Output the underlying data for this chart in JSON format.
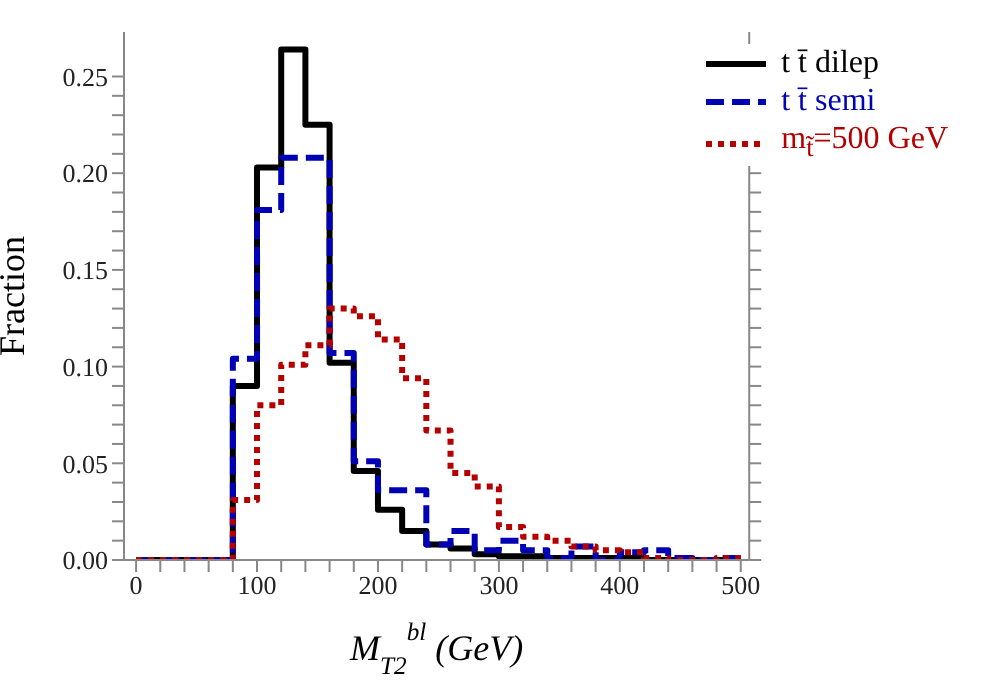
{
  "chart_data": {
    "type": "histogram",
    "xlabel": "M$_{T2}$$^{bl}$  (GeV)",
    "ylabel": "Fraction",
    "bins": [
      0,
      20,
      40,
      60,
      80,
      100,
      120,
      140,
      160,
      180,
      200,
      220,
      240,
      260,
      280,
      300,
      320,
      340,
      360,
      380,
      400,
      420,
      440,
      460,
      480,
      500
    ],
    "series": [
      {
        "name": "t t̄ dilep",
        "color": "#000000",
        "line_style": "solid",
        "values": [
          0,
          0,
          0,
          0,
          0.09,
          0.203,
          0.264,
          0.225,
          0.102,
          0.046,
          0.026,
          0.015,
          0.008,
          0.006,
          0.003,
          0.002,
          0.002,
          0.001,
          0.001,
          0.001,
          0.001,
          0,
          0,
          0,
          0
        ]
      },
      {
        "name": "t t̄ semi",
        "color": "#0000b4",
        "line_style": "dashed",
        "values": [
          0,
          0,
          0,
          0,
          0.104,
          0.181,
          0.208,
          0.208,
          0.107,
          0.051,
          0.036,
          0.036,
          0.008,
          0.015,
          0.005,
          0.01,
          0.005,
          0.001,
          0.007,
          0,
          0.004,
          0.005,
          0.001,
          0,
          0.001
        ]
      },
      {
        "name": "m$_{t̃}$=500 GeV",
        "color": "#b40000",
        "line_style": "dotted",
        "values": [
          0,
          0,
          0,
          0,
          0.031,
          0.08,
          0.101,
          0.111,
          0.13,
          0.126,
          0.114,
          0.094,
          0.067,
          0.045,
          0.038,
          0.017,
          0.012,
          0.01,
          0.007,
          0.005,
          0.004,
          0.001,
          0,
          0,
          0.001
        ]
      }
    ],
    "xlim": [
      -10,
      507
    ],
    "ylim": [
      0,
      0.273
    ],
    "xticks": [
      0,
      {
        "value": 20,
        "label": null
      },
      {
        "value": 40,
        "label": null
      },
      {
        "value": 60,
        "label": null
      },
      {
        "value": 80,
        "label": null
      },
      100,
      {
        "value": 120,
        "label": null
      },
      {
        "value": 140,
        "label": null
      },
      {
        "value": 160,
        "label": null
      },
      {
        "value": 180,
        "label": null
      },
      200,
      {
        "value": 220,
        "label": null
      },
      {
        "value": 240,
        "label": null
      },
      {
        "value": 260,
        "label": null
      },
      {
        "value": 280,
        "label": null
      },
      300,
      {
        "value": 320,
        "label": null
      },
      {
        "value": 340,
        "label": null
      },
      {
        "value": 360,
        "label": null
      },
      {
        "value": 380,
        "label": null
      },
      400,
      {
        "value": 420,
        "label": null
      },
      {
        "value": 440,
        "label": null
      },
      {
        "value": 460,
        "label": null
      },
      {
        "value": 480,
        "label": null
      },
      500
    ],
    "yticks": [
      {
        "value": 0,
        "label": "0.00"
      },
      {
        "value": 0.01,
        "label": null
      },
      {
        "value": 0.02,
        "label": null
      },
      {
        "value": 0.03,
        "label": null
      },
      {
        "value": 0.04,
        "label": null
      },
      {
        "value": 0.05,
        "label": "0.05"
      },
      {
        "value": 0.06,
        "label": null
      },
      {
        "value": 0.07,
        "label": null
      },
      {
        "value": 0.08,
        "label": null
      },
      {
        "value": 0.09,
        "label": null
      },
      {
        "value": 0.1,
        "label": "0.10"
      },
      {
        "value": 0.11,
        "label": null
      },
      {
        "value": 0.12,
        "label": null
      },
      {
        "value": 0.13,
        "label": null
      },
      {
        "value": 0.14,
        "label": null
      },
      {
        "value": 0.15,
        "label": "0.15"
      },
      {
        "value": 0.16,
        "label": null
      },
      {
        "value": 0.17,
        "label": null
      },
      {
        "value": 0.18,
        "label": null
      },
      {
        "value": 0.19,
        "label": null
      },
      {
        "value": 0.2,
        "label": "0.20"
      },
      {
        "value": 0.21,
        "label": null
      },
      {
        "value": 0.22,
        "label": null
      },
      {
        "value": 0.23,
        "label": null
      },
      {
        "value": 0.24,
        "label": null
      },
      {
        "value": 0.25,
        "label": "0.25"
      }
    ],
    "grid": false,
    "legend": "top right"
  }
}
